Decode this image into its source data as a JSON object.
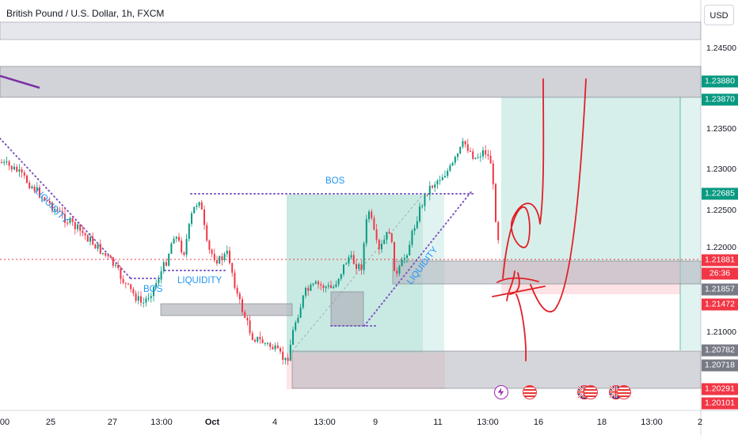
{
  "header": {
    "symbol_title": "British Pound / U.S. Dollar, 1h, FXCM",
    "currency_button": "USD"
  },
  "price_axis": {
    "ticks": [
      "1.24500",
      "1.23500",
      "1.23000",
      "1.22500",
      "1.22000",
      "1.21000"
    ],
    "badges": [
      {
        "value": "1.23880",
        "color": "#089981"
      },
      {
        "value": "1.23870",
        "color": "#089981"
      },
      {
        "value": "1.22685",
        "color": "#089981"
      },
      {
        "value": "1.21881",
        "color": "#f23645"
      },
      {
        "value": "26:36",
        "color": "#f23645"
      },
      {
        "value": "1.21857",
        "color": "#787b86"
      },
      {
        "value": "1.21472",
        "color": "#f23645"
      },
      {
        "value": "1.20782",
        "color": "#787b86"
      },
      {
        "value": "1.20718",
        "color": "#787b86"
      },
      {
        "value": "1.20291",
        "color": "#f23645"
      },
      {
        "value": "1.20101",
        "color": "#f23645"
      }
    ]
  },
  "time_axis": {
    "ticks": [
      {
        "label": "00",
        "bold": false
      },
      {
        "label": "25",
        "bold": false
      },
      {
        "label": "27",
        "bold": false
      },
      {
        "label": "13:00",
        "bold": false
      },
      {
        "label": "Oct",
        "bold": true
      },
      {
        "label": "4",
        "bold": false
      },
      {
        "label": "13:00",
        "bold": false
      },
      {
        "label": "9",
        "bold": false
      },
      {
        "label": "11",
        "bold": false
      },
      {
        "label": "13:00",
        "bold": false
      },
      {
        "label": "16",
        "bold": false
      },
      {
        "label": "18",
        "bold": false
      },
      {
        "label": "13:00",
        "bold": false
      },
      {
        "label": "2",
        "bold": false
      }
    ]
  },
  "annotations": {
    "liquidity_1": "LIQUIDITY",
    "liquidity_2": "LIQUIDITY",
    "liquidity_3": "LIQUIDITY",
    "bos_1": "BOS",
    "bos_2": "BOS"
  },
  "events": [
    {
      "name": "lightning-event-icon",
      "color": "#9c27b0"
    },
    {
      "name": "us-flag-event-icon",
      "color": "#f23645"
    },
    {
      "name": "uk-flag-event-icon",
      "color": "#f23645"
    },
    {
      "name": "us-flag-event-icon",
      "color": "#f23645"
    },
    {
      "name": "uk-flag-event-icon",
      "color": "#f23645"
    },
    {
      "name": "us-flag-event-icon",
      "color": "#f23645"
    }
  ],
  "colors": {
    "up_candle": "#089981",
    "down_candle": "#f23645",
    "long_zone": "#089981",
    "stop_zone": "#f23645",
    "supply_zone": "#b2b5be",
    "liquidity_line": "#7e57c2",
    "drawing_stroke": "#e01f26"
  }
}
